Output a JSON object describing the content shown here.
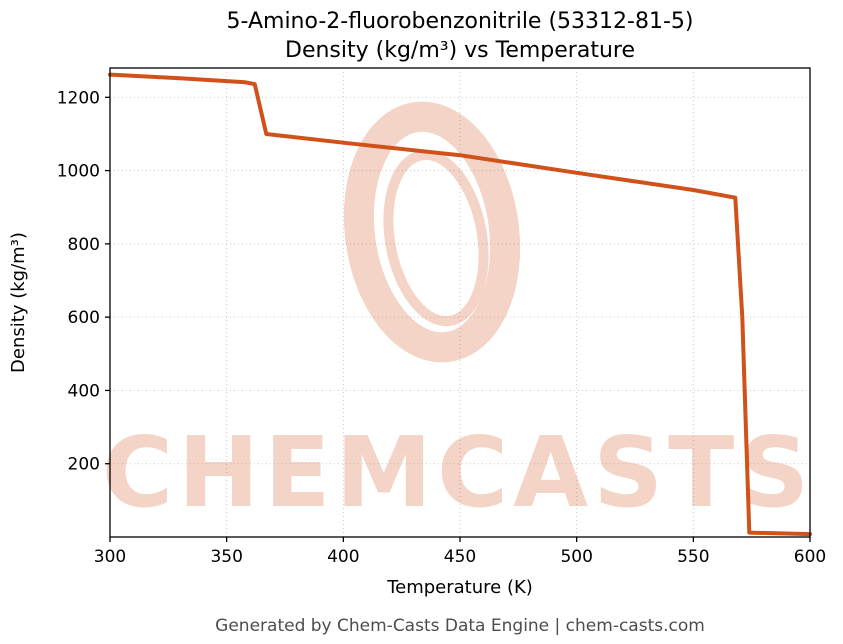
{
  "page": {
    "title_line1": "5-Amino-2-fluorobenzonitrile (53312-81-5)",
    "title_line2": "Density (kg/m³) vs Temperature",
    "footer": "Generated by Chem-Casts Data Engine | chem-casts.com"
  },
  "watermark": {
    "text": "CHEMCASTS",
    "color": "#d2521e",
    "opacity": 0.25
  },
  "chart_data": {
    "type": "line",
    "title": "5-Amino-2-fluorobenzonitrile (53312-81-5) — Density (kg/m³) vs Temperature",
    "xlabel": "Temperature (K)",
    "ylabel": "Density (kg/m³)",
    "xlim": [
      300,
      600
    ],
    "ylim": [
      0,
      1280
    ],
    "xticks": [
      300,
      350,
      400,
      450,
      500,
      550,
      600
    ],
    "yticks": [
      200,
      400,
      600,
      800,
      1000,
      1200
    ],
    "grid": true,
    "legend": false,
    "line_color": "#d0521a",
    "line_width": 4,
    "series": [
      {
        "name": "density",
        "points": [
          [
            300,
            1262
          ],
          [
            330,
            1252
          ],
          [
            358,
            1241
          ],
          [
            362,
            1236
          ],
          [
            367,
            1100
          ],
          [
            400,
            1076
          ],
          [
            450,
            1042
          ],
          [
            500,
            994
          ],
          [
            550,
            947
          ],
          [
            568,
            926
          ],
          [
            571,
            600
          ],
          [
            574,
            12
          ],
          [
            600,
            8
          ]
        ]
      }
    ]
  }
}
